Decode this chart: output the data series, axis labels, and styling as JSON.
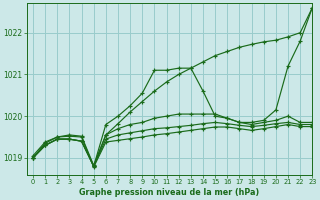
{
  "background_color": "#cce8e8",
  "grid_color": "#99cccc",
  "line_color": "#1a6b1a",
  "title": "Graphe pression niveau de la mer (hPa)",
  "xlim": [
    -0.5,
    23
  ],
  "ylim": [
    1018.6,
    1022.7
  ],
  "yticks": [
    1019,
    1020,
    1021,
    1022
  ],
  "xticks": [
    0,
    1,
    2,
    3,
    4,
    5,
    6,
    7,
    8,
    9,
    10,
    11,
    12,
    13,
    14,
    15,
    16,
    17,
    18,
    19,
    20,
    21,
    22,
    23
  ],
  "series": [
    [
      1019.0,
      1019.3,
      1019.45,
      1019.45,
      1019.4,
      1018.8,
      1019.8,
      1020.0,
      1020.25,
      1020.55,
      1021.1,
      1021.1,
      1021.15,
      1021.15,
      1020.6,
      1020.0,
      1019.95,
      1019.85,
      1019.85,
      1019.9,
      1020.15,
      1021.2,
      1021.8,
      1022.6
    ],
    [
      1019.0,
      1019.3,
      1019.45,
      1019.45,
      1019.4,
      1018.8,
      1019.55,
      1019.7,
      1019.8,
      1019.85,
      1019.95,
      1020.0,
      1020.05,
      1020.05,
      1020.05,
      1020.05,
      1019.95,
      1019.85,
      1019.8,
      1019.85,
      1019.9,
      1020.0,
      1019.85,
      1019.85
    ],
    [
      1019.0,
      1019.3,
      1019.45,
      1019.45,
      1019.4,
      1018.8,
      1019.45,
      1019.55,
      1019.6,
      1019.65,
      1019.7,
      1019.72,
      1019.75,
      1019.78,
      1019.82,
      1019.85,
      1019.82,
      1019.78,
      1019.75,
      1019.78,
      1019.82,
      1019.85,
      1019.8,
      1019.8
    ],
    [
      1019.0,
      1019.35,
      1019.5,
      1019.52,
      1019.5,
      1018.78,
      1019.38,
      1019.42,
      1019.46,
      1019.5,
      1019.55,
      1019.58,
      1019.62,
      1019.66,
      1019.7,
      1019.74,
      1019.74,
      1019.7,
      1019.66,
      1019.7,
      1019.75,
      1019.8,
      1019.75,
      1019.75
    ],
    [
      1019.05,
      1019.38,
      1019.5,
      1019.55,
      1019.52,
      1018.82,
      1019.55,
      1019.82,
      1020.1,
      1020.35,
      1020.6,
      1020.82,
      1021.0,
      1021.15,
      1021.3,
      1021.45,
      1021.55,
      1021.65,
      1021.72,
      1021.78,
      1021.82,
      1021.9,
      1022.0,
      1022.6
    ]
  ]
}
